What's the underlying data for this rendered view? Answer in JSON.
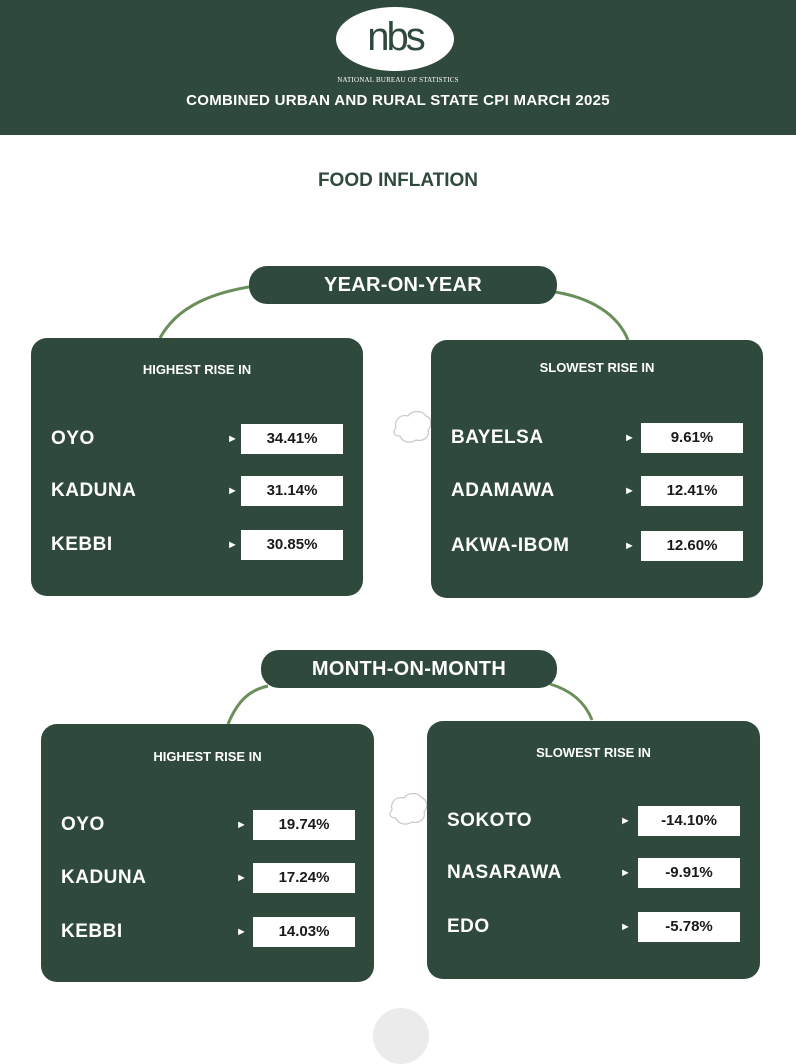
{
  "header": {
    "logo_text": "nbs",
    "agency": "NATIONAL BUREAU OF STATISTICS",
    "title": "COMBINED URBAN AND RURAL STATE CPI MARCH 2025"
  },
  "section_title": "FOOD INFLATION",
  "colors": {
    "primary": "#2f4a3c",
    "arc": "#6a8f5a",
    "background": "#ffffff"
  },
  "year_on_year": {
    "label": "YEAR-ON-YEAR",
    "highest": {
      "heading": "HIGHEST RISE IN",
      "rows": [
        {
          "state": "OYO",
          "value": "34.41%"
        },
        {
          "state": "KADUNA",
          "value": "31.14%"
        },
        {
          "state": "KEBBI",
          "value": "30.85%"
        }
      ]
    },
    "slowest": {
      "heading": "SLOWEST RISE IN",
      "rows": [
        {
          "state": "BAYELSA",
          "value": "9.61%"
        },
        {
          "state": "ADAMAWA",
          "value": "12.41%"
        },
        {
          "state": "AKWA-IBOM",
          "value": "12.60%"
        }
      ]
    }
  },
  "month_on_month": {
    "label": "MONTH-ON-MONTH",
    "highest": {
      "heading": "HIGHEST RISE IN",
      "rows": [
        {
          "state": "OYO",
          "value": "19.74%"
        },
        {
          "state": "KADUNA",
          "value": "17.24%"
        },
        {
          "state": "KEBBI",
          "value": "14.03%"
        }
      ]
    },
    "slowest": {
      "heading": "SLOWEST RISE IN",
      "rows": [
        {
          "state": "SOKOTO",
          "value": "-14.10%"
        },
        {
          "state": "NASARAWA",
          "value": "-9.91%"
        },
        {
          "state": "EDO",
          "value": "-5.78%"
        }
      ]
    }
  },
  "icons": {
    "arrow": "arrow-right-icon",
    "map": "nigeria-map-outline-icon"
  }
}
